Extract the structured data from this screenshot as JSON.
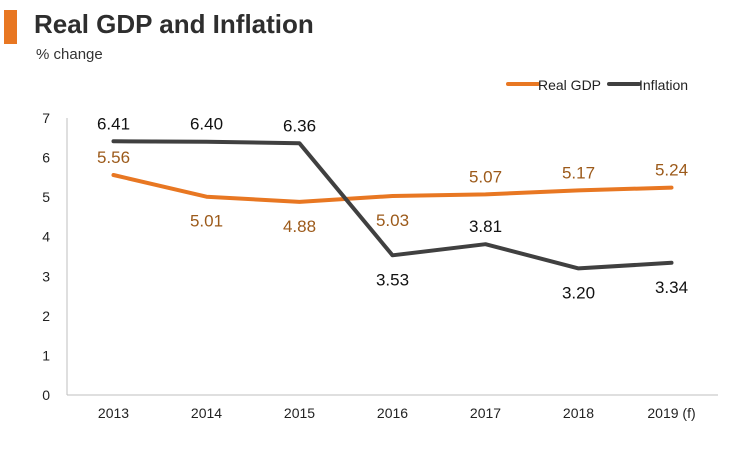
{
  "header": {
    "title": "Real GDP and Inflation",
    "subtitle": "% change",
    "accent_color": "#E87722"
  },
  "chart_data": {
    "type": "line",
    "title": "Real GDP and Inflation",
    "ylabel": "% change",
    "xlabel": "",
    "categories": [
      "2013",
      "2014",
      "2015",
      "2016",
      "2017",
      "2018",
      "2019 (f)"
    ],
    "ylim": [
      0,
      7
    ],
    "yticks": [
      "0",
      "1",
      "2",
      "3",
      "4",
      "5",
      "6",
      "7"
    ],
    "grid": false,
    "legend_position": "top-right",
    "series": [
      {
        "name": "Real GDP",
        "color": "#E87722",
        "label_color": "#9C5A1A",
        "values": [
          5.56,
          5.01,
          4.88,
          5.03,
          5.07,
          5.17,
          5.24
        ],
        "labels": [
          "5.56",
          "5.01",
          "4.88",
          "5.03",
          "5.07",
          "5.17",
          "5.24"
        ],
        "label_side": [
          "above",
          "below",
          "below",
          "below",
          "above",
          "above",
          "above"
        ]
      },
      {
        "name": "Inflation",
        "color": "#404040",
        "label_color": "#111111",
        "values": [
          6.41,
          6.4,
          6.36,
          3.53,
          3.81,
          3.2,
          3.34
        ],
        "labels": [
          "6.41",
          "6.40",
          "6.36",
          "3.53",
          "3.81",
          "3.20",
          "3.34"
        ],
        "label_side": [
          "above",
          "above",
          "above",
          "below",
          "above",
          "below",
          "below"
        ]
      }
    ]
  }
}
